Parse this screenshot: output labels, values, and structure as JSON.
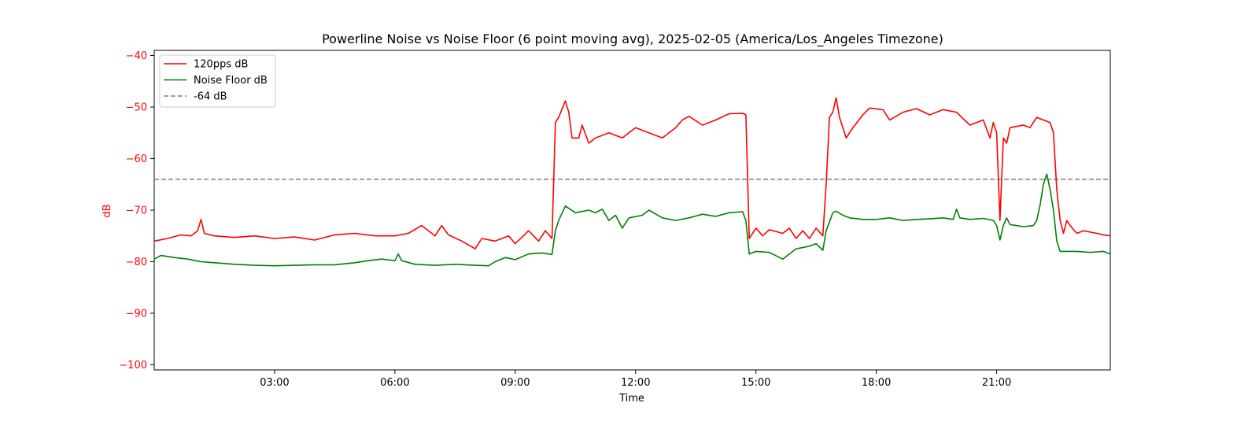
{
  "chart_data": {
    "type": "line",
    "title": "Powerline Noise vs Noise Floor (6 point moving avg), 2025-02-05 (America/Los_Angeles Timezone)",
    "xlabel": "Time",
    "ylabel": "dB",
    "xlim": [
      "00:00",
      "23:50"
    ],
    "ylim": [
      -101,
      -39
    ],
    "xticks": [
      "03:00",
      "06:00",
      "09:00",
      "12:00",
      "15:00",
      "18:00",
      "21:00"
    ],
    "yticks": [
      -40,
      -50,
      -60,
      -70,
      -80,
      -90,
      -100
    ],
    "grid": false,
    "legend_position": "upper-left",
    "colors": {
      "axis_label_y": "#ff0000",
      "tick_y": "#ff0000"
    },
    "series": [
      {
        "name": "120pps dB",
        "color": "#ff0000",
        "style": "solid",
        "points": [
          [
            "00:00",
            -76
          ],
          [
            "00:20",
            -75.5
          ],
          [
            "00:40",
            -74.8
          ],
          [
            "00:55",
            -75
          ],
          [
            "01:05",
            -74
          ],
          [
            "01:10",
            -71.8
          ],
          [
            "01:15",
            -74.5
          ],
          [
            "01:30",
            -75
          ],
          [
            "02:00",
            -75.3
          ],
          [
            "02:30",
            -75
          ],
          [
            "03:00",
            -75.5
          ],
          [
            "03:30",
            -75.2
          ],
          [
            "04:00",
            -75.8
          ],
          [
            "04:30",
            -74.8
          ],
          [
            "05:00",
            -74.5
          ],
          [
            "05:30",
            -75
          ],
          [
            "06:00",
            -75
          ],
          [
            "06:20",
            -74.5
          ],
          [
            "06:40",
            -73
          ],
          [
            "07:00",
            -75
          ],
          [
            "07:10",
            -73
          ],
          [
            "07:20",
            -74.8
          ],
          [
            "07:40",
            -76
          ],
          [
            "08:00",
            -77.5
          ],
          [
            "08:10",
            -75.5
          ],
          [
            "08:30",
            -76
          ],
          [
            "08:50",
            -75
          ],
          [
            "09:00",
            -76.5
          ],
          [
            "09:20",
            -74
          ],
          [
            "09:35",
            -76
          ],
          [
            "09:45",
            -74
          ],
          [
            "09:55",
            -75.5
          ],
          [
            "10:00",
            -53
          ],
          [
            "10:05",
            -52
          ],
          [
            "10:15",
            -48.8
          ],
          [
            "10:20",
            -51
          ],
          [
            "10:25",
            -56
          ],
          [
            "10:35",
            -56
          ],
          [
            "10:40",
            -53.5
          ],
          [
            "10:50",
            -57
          ],
          [
            "11:00",
            -56
          ],
          [
            "11:20",
            -55
          ],
          [
            "11:40",
            -56
          ],
          [
            "12:00",
            -54
          ],
          [
            "12:20",
            -55
          ],
          [
            "12:40",
            -56
          ],
          [
            "13:00",
            -54
          ],
          [
            "13:10",
            -52.5
          ],
          [
            "13:20",
            -51.8
          ],
          [
            "13:40",
            -53.5
          ],
          [
            "14:00",
            -52.5
          ],
          [
            "14:20",
            -51.3
          ],
          [
            "14:40",
            -51.2
          ],
          [
            "14:45",
            -51.5
          ],
          [
            "14:50",
            -75.5
          ],
          [
            "15:00",
            -73.5
          ],
          [
            "15:10",
            -75
          ],
          [
            "15:20",
            -73.8
          ],
          [
            "15:40",
            -74.5
          ],
          [
            "15:50",
            -73.5
          ],
          [
            "16:00",
            -75.5
          ],
          [
            "16:10",
            -74
          ],
          [
            "16:20",
            -75.5
          ],
          [
            "16:30",
            -73.5
          ],
          [
            "16:40",
            -75
          ],
          [
            "16:45",
            -65
          ],
          [
            "16:50",
            -52
          ],
          [
            "16:55",
            -51
          ],
          [
            "17:00",
            -48.2
          ],
          [
            "17:05",
            -52
          ],
          [
            "17:15",
            -56
          ],
          [
            "17:25",
            -54
          ],
          [
            "17:40",
            -51.5
          ],
          [
            "17:50",
            -50.2
          ],
          [
            "18:10",
            -50.5
          ],
          [
            "18:20",
            -52.5
          ],
          [
            "18:40",
            -51
          ],
          [
            "19:00",
            -50.3
          ],
          [
            "19:20",
            -51.5
          ],
          [
            "19:40",
            -50.5
          ],
          [
            "20:00",
            -51
          ],
          [
            "20:20",
            -53.5
          ],
          [
            "20:40",
            -52.5
          ],
          [
            "20:50",
            -56
          ],
          [
            "20:55",
            -53
          ],
          [
            "21:00",
            -55
          ],
          [
            "21:05",
            -72
          ],
          [
            "21:10",
            -56
          ],
          [
            "21:15",
            -57
          ],
          [
            "21:20",
            -54
          ],
          [
            "21:40",
            -53.5
          ],
          [
            "21:50",
            -54
          ],
          [
            "22:00",
            -52
          ],
          [
            "22:20",
            -53
          ],
          [
            "22:25",
            -55
          ],
          [
            "22:30",
            -66
          ],
          [
            "22:35",
            -72
          ],
          [
            "22:40",
            -74.5
          ],
          [
            "22:45",
            -72
          ],
          [
            "22:50",
            -73
          ],
          [
            "23:00",
            -74.5
          ],
          [
            "23:10",
            -74
          ],
          [
            "23:30",
            -74.5
          ],
          [
            "23:40",
            -74.8
          ],
          [
            "23:50",
            -75
          ]
        ]
      },
      {
        "name": "Noise Floor dB",
        "color": "#008000",
        "style": "solid",
        "points": [
          [
            "00:00",
            -79.5
          ],
          [
            "00:10",
            -78.8
          ],
          [
            "00:30",
            -79.2
          ],
          [
            "00:50",
            -79.5
          ],
          [
            "01:10",
            -80
          ],
          [
            "01:30",
            -80.2
          ],
          [
            "02:00",
            -80.5
          ],
          [
            "02:30",
            -80.7
          ],
          [
            "03:00",
            -80.8
          ],
          [
            "03:30",
            -80.7
          ],
          [
            "04:00",
            -80.6
          ],
          [
            "04:30",
            -80.6
          ],
          [
            "05:00",
            -80.2
          ],
          [
            "05:20",
            -79.8
          ],
          [
            "05:40",
            -79.5
          ],
          [
            "06:00",
            -79.8
          ],
          [
            "06:05",
            -78.5
          ],
          [
            "06:10",
            -79.8
          ],
          [
            "06:30",
            -80.5
          ],
          [
            "07:00",
            -80.7
          ],
          [
            "07:30",
            -80.5
          ],
          [
            "08:00",
            -80.7
          ],
          [
            "08:20",
            -80.8
          ],
          [
            "08:30",
            -80
          ],
          [
            "08:45",
            -79.2
          ],
          [
            "09:00",
            -79.6
          ],
          [
            "09:20",
            -78.5
          ],
          [
            "09:40",
            -78.3
          ],
          [
            "09:55",
            -78.6
          ],
          [
            "10:00",
            -74
          ],
          [
            "10:05",
            -72
          ],
          [
            "10:15",
            -69.2
          ],
          [
            "10:30",
            -70.5
          ],
          [
            "10:50",
            -70
          ],
          [
            "11:00",
            -70.5
          ],
          [
            "11:10",
            -69.8
          ],
          [
            "11:20",
            -72
          ],
          [
            "11:30",
            -71
          ],
          [
            "11:40",
            -73.5
          ],
          [
            "11:50",
            -71.5
          ],
          [
            "12:10",
            -71
          ],
          [
            "12:20",
            -70
          ],
          [
            "12:40",
            -71.5
          ],
          [
            "13:00",
            -72
          ],
          [
            "13:20",
            -71.5
          ],
          [
            "13:40",
            -70.8
          ],
          [
            "14:00",
            -71.2
          ],
          [
            "14:20",
            -70.5
          ],
          [
            "14:40",
            -70.3
          ],
          [
            "14:45",
            -72
          ],
          [
            "14:50",
            -78.5
          ],
          [
            "15:00",
            -78
          ],
          [
            "15:20",
            -78.2
          ],
          [
            "15:40",
            -79.5
          ],
          [
            "15:50",
            -78.5
          ],
          [
            "16:00",
            -77.5
          ],
          [
            "16:20",
            -77
          ],
          [
            "16:30",
            -76.5
          ],
          [
            "16:40",
            -77.8
          ],
          [
            "16:45",
            -74
          ],
          [
            "16:55",
            -70.5
          ],
          [
            "17:00",
            -70.2
          ],
          [
            "17:10",
            -71
          ],
          [
            "17:20",
            -71.5
          ],
          [
            "17:40",
            -71.8
          ],
          [
            "18:00",
            -71.8
          ],
          [
            "18:20",
            -71.5
          ],
          [
            "18:40",
            -72
          ],
          [
            "19:00",
            -71.8
          ],
          [
            "19:20",
            -71.7
          ],
          [
            "19:40",
            -71.5
          ],
          [
            "19:55",
            -71.8
          ],
          [
            "20:00",
            -69.8
          ],
          [
            "20:05",
            -71.5
          ],
          [
            "20:20",
            -71.8
          ],
          [
            "20:40",
            -71.6
          ],
          [
            "20:55",
            -72
          ],
          [
            "21:00",
            -73
          ],
          [
            "21:05",
            -75.8
          ],
          [
            "21:10",
            -73
          ],
          [
            "21:15",
            -71.5
          ],
          [
            "21:20",
            -72.8
          ],
          [
            "21:40",
            -73.2
          ],
          [
            "21:55",
            -73
          ],
          [
            "22:00",
            -72
          ],
          [
            "22:05",
            -69
          ],
          [
            "22:10",
            -65
          ],
          [
            "22:15",
            -63
          ],
          [
            "22:20",
            -66
          ],
          [
            "22:25",
            -70
          ],
          [
            "22:30",
            -76
          ],
          [
            "22:35",
            -78
          ],
          [
            "23:00",
            -78
          ],
          [
            "23:20",
            -78.2
          ],
          [
            "23:40",
            -78
          ],
          [
            "23:50",
            -78.5
          ]
        ]
      },
      {
        "name": "-64 dB",
        "color": "#808080",
        "style": "dashed",
        "points": [
          [
            "00:00",
            -64
          ],
          [
            "23:50",
            -64
          ]
        ]
      }
    ]
  }
}
